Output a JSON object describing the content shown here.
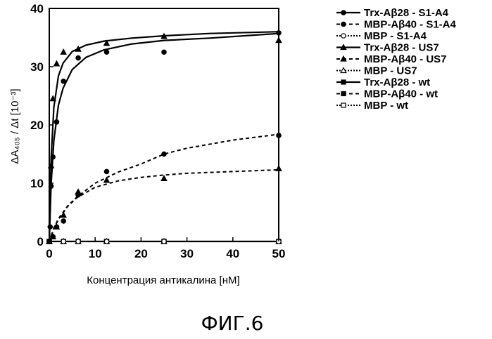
{
  "figure": {
    "caption": "ФИГ.6"
  },
  "chart_data": {
    "type": "scatter",
    "xlabel": "Концентрация антикалина [нМ]",
    "ylabel": "ΔA₄₀₅ / Δt [10⁻³]",
    "xlim": [
      0,
      50
    ],
    "ylim": [
      0,
      40
    ],
    "xticks": [
      0,
      10,
      20,
      30,
      40,
      50
    ],
    "yticks": [
      0,
      10,
      20,
      30,
      40
    ],
    "grid": false,
    "legend_position": "right",
    "series": [
      {
        "name": "Trx-Aβ28 - S1-A4",
        "marker": "circle-filled",
        "line": "solid",
        "x": [
          0,
          0.2,
          0.4,
          0.8,
          1.6,
          3.1,
          6.3,
          12.5,
          25,
          50
        ],
        "y": [
          0,
          2.5,
          9.5,
          14.5,
          20.5,
          27.5,
          31.5,
          32.5,
          32.5,
          35.8
        ],
        "fit": {
          "x": [
            0,
            0.4,
            1,
            2,
            3,
            5,
            8,
            12,
            18,
            25,
            35,
            50
          ],
          "y": [
            0,
            9.8,
            17.3,
            23.4,
            26.3,
            29.5,
            31.6,
            32.9,
            33.9,
            34.5,
            34.9,
            35.7
          ]
        }
      },
      {
        "name": "MBP-Aβ40 - S1-A4",
        "marker": "circle-filled",
        "line": "dashed",
        "x": [
          0,
          0.8,
          1.6,
          3.1,
          6.3,
          12.5,
          25,
          50
        ],
        "y": [
          0,
          0.8,
          2.5,
          3.5,
          8,
          12,
          15,
          18.2
        ],
        "fit": {
          "x": [
            0,
            1,
            2,
            4,
            6,
            10,
            15,
            20,
            25,
            30,
            40,
            50
          ],
          "y": [
            0,
            2.3,
            3.9,
            6.1,
            7.6,
            10,
            11.9,
            13.3,
            15,
            16,
            17.4,
            18.4
          ]
        }
      },
      {
        "name": "MBP - S1-A4",
        "marker": "circle-open",
        "line": "dotted",
        "x": [
          0,
          3.1,
          6.3,
          12.5,
          25,
          50
        ],
        "y": [
          0,
          0,
          0,
          0,
          0,
          0
        ],
        "fit": {
          "x": [
            0,
            50
          ],
          "y": [
            0,
            0
          ]
        }
      },
      {
        "name": "Trx-Aβ28 - US7",
        "marker": "triangle-filled",
        "line": "solid",
        "x": [
          0,
          0.4,
          0.8,
          1.6,
          3.1,
          6.3,
          12.5,
          25,
          50
        ],
        "y": [
          0,
          13,
          24.5,
          30.5,
          32.5,
          33,
          34,
          35.2,
          34.5
        ],
        "fit": {
          "x": [
            0,
            0.4,
            1,
            2,
            3,
            5,
            8,
            12,
            18,
            25,
            35,
            50
          ],
          "y": [
            0,
            14.2,
            23,
            28.4,
            30.6,
            32.6,
            33.7,
            34.4,
            34.9,
            35.3,
            35.7,
            36
          ]
        }
      },
      {
        "name": "MBP-Aβ40 - US7",
        "marker": "triangle-filled",
        "line": "dashed",
        "x": [
          0,
          0.8,
          1.6,
          3.1,
          6.3,
          12.5,
          25,
          50
        ],
        "y": [
          0,
          0.8,
          2.5,
          4.5,
          8.5,
          10.5,
          10.8,
          12.5
        ],
        "fit": {
          "x": [
            0,
            1,
            2,
            4,
            6,
            10,
            15,
            20,
            25,
            30,
            40,
            50
          ],
          "y": [
            0,
            2.2,
            3.8,
            6,
            7.5,
            9.3,
            10.4,
            11,
            11.4,
            11.7,
            12,
            12.3
          ]
        }
      },
      {
        "name": "MBP - US7",
        "marker": "triangle-open",
        "line": "dotted",
        "x": [
          0,
          3.1,
          6.3,
          12.5,
          25,
          50
        ],
        "y": [
          0,
          0,
          0,
          0,
          0,
          0
        ],
        "fit": {
          "x": [
            0,
            50
          ],
          "y": [
            0,
            0
          ]
        }
      },
      {
        "name": "Trx-Aβ28 - wt",
        "marker": "square-filled",
        "line": "solid",
        "x": [
          0,
          3.1,
          6.3,
          12.5,
          25,
          50
        ],
        "y": [
          0,
          0,
          0,
          0,
          0,
          0
        ],
        "fit": {
          "x": [
            0,
            50
          ],
          "y": [
            0,
            0
          ]
        }
      },
      {
        "name": "MBP-Aβ40 - wt",
        "marker": "square-filled",
        "line": "dashed",
        "x": [
          0,
          3.1,
          6.3,
          12.5,
          25,
          50
        ],
        "y": [
          0,
          0,
          0,
          0,
          0,
          0
        ],
        "fit": {
          "x": [
            0,
            50
          ],
          "y": [
            0,
            0
          ]
        }
      },
      {
        "name": "MBP - wt",
        "marker": "square-open",
        "line": "dotted",
        "x": [
          0,
          3.1,
          6.3,
          12.5,
          25,
          50
        ],
        "y": [
          0,
          0,
          0,
          0,
          0,
          0
        ],
        "fit": {
          "x": [
            0,
            50
          ],
          "y": [
            0,
            0
          ]
        }
      }
    ]
  }
}
